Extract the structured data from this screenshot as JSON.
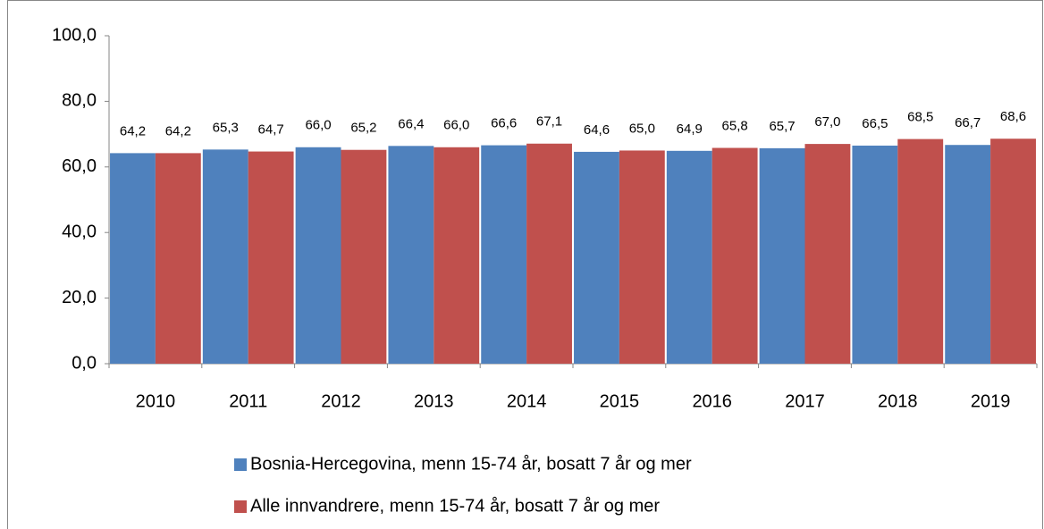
{
  "chart_data": {
    "type": "bar",
    "categories": [
      "2010",
      "2011",
      "2012",
      "2013",
      "2014",
      "2015",
      "2016",
      "2017",
      "2018",
      "2019"
    ],
    "series": [
      {
        "name": "Bosnia-Hercegovina, menn 15-74 år, bosatt 7 år og mer",
        "color": "#4f81bd",
        "values": [
          64.2,
          65.3,
          66.0,
          66.4,
          66.6,
          64.6,
          64.9,
          65.7,
          66.5,
          66.7
        ],
        "value_labels": [
          "64,2",
          "65,3",
          "66,0",
          "66,4",
          "66,6",
          "64,6",
          "64,9",
          "65,7",
          "66,5",
          "66,7"
        ]
      },
      {
        "name": "Alle innvandrere, menn 15-74 år, bosatt 7 år og mer",
        "color": "#c0504d",
        "values": [
          64.2,
          64.7,
          65.2,
          66.0,
          67.1,
          65.0,
          65.8,
          67.0,
          68.5,
          68.6
        ],
        "value_labels": [
          "64,2",
          "64,7",
          "65,2",
          "66,0",
          "67,1",
          "65,0",
          "65,8",
          "67,0",
          "68,5",
          "68,6"
        ]
      }
    ],
    "ylim": [
      0,
      100
    ],
    "yticks": [
      {
        "value": 0,
        "label": "0,0"
      },
      {
        "value": 20,
        "label": "20,0"
      },
      {
        "value": 40,
        "label": "40,0"
      },
      {
        "value": 60,
        "label": "60,0"
      },
      {
        "value": 80,
        "label": "80,0"
      },
      {
        "value": 100,
        "label": "100,0"
      }
    ],
    "grid": false,
    "legend": "bottom"
  }
}
